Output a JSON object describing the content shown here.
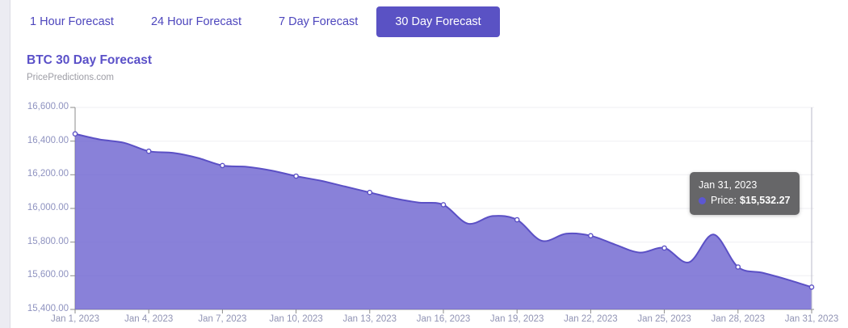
{
  "tabs": [
    {
      "label": "1 Hour Forecast",
      "selected": false
    },
    {
      "label": "24 Hour Forecast",
      "selected": false
    },
    {
      "label": "7 Day Forecast",
      "selected": false
    },
    {
      "label": "30 Day Forecast",
      "selected": true
    }
  ],
  "header": {
    "title": "BTC 30 Day Forecast",
    "source": "PricePredictions.com"
  },
  "chart_data": {
    "type": "area",
    "title": "BTC 30 Day Forecast",
    "x": [
      "Jan 1, 2023",
      "Jan 2, 2023",
      "Jan 3, 2023",
      "Jan 4, 2023",
      "Jan 5, 2023",
      "Jan 6, 2023",
      "Jan 7, 2023",
      "Jan 8, 2023",
      "Jan 9, 2023",
      "Jan 10, 2023",
      "Jan 11, 2023",
      "Jan 12, 2023",
      "Jan 13, 2023",
      "Jan 14, 2023",
      "Jan 15, 2023",
      "Jan 16, 2023",
      "Jan 17, 2023",
      "Jan 18, 2023",
      "Jan 19, 2023",
      "Jan 20, 2023",
      "Jan 21, 2023",
      "Jan 22, 2023",
      "Jan 23, 2023",
      "Jan 24, 2023",
      "Jan 25, 2023",
      "Jan 26, 2023",
      "Jan 27, 2023",
      "Jan 28, 2023",
      "Jan 29, 2023",
      "Jan 30, 2023",
      "Jan 31, 2023"
    ],
    "values": [
      16443,
      16410,
      16390,
      16340,
      16330,
      16300,
      16255,
      16247,
      16225,
      16192,
      16165,
      16130,
      16095,
      16060,
      16035,
      16022,
      15910,
      15955,
      15933,
      15808,
      15850,
      15838,
      15785,
      15738,
      15765,
      15680,
      15845,
      15652,
      15618,
      15578,
      15532.27
    ],
    "x_tick_labels": [
      "Jan 1, 2023",
      "Jan 4, 2023",
      "Jan 7, 2023",
      "Jan 10, 2023",
      "Jan 13, 2023",
      "Jan 16, 2023",
      "Jan 19, 2023",
      "Jan 22, 2023",
      "Jan 25, 2023",
      "Jan 28, 2023",
      "Jan 31, 2023"
    ],
    "x_tick_interval": 3,
    "y_tick_labels": [
      "16,600.00",
      "16,400.00",
      "16,200.00",
      "16,000.00",
      "15,800.00",
      "15,600.00",
      "15,400.00"
    ],
    "ylim": [
      15400,
      16600
    ],
    "y_tick_step": 200,
    "grid": true,
    "legend": "none",
    "marker_interval": 3,
    "crosshair_x": "Jan 31, 2023",
    "colors": {
      "line": "#5b50c5",
      "fill": "#6b61cf",
      "fill_opacity": 0.8,
      "grid": "#efeff3",
      "axis": "#8b8b8b",
      "tick": "#8b8b8b",
      "crosshair": "#b8b8c8",
      "accent": "#5a52c4"
    }
  },
  "tooltip": {
    "date": "Jan 31, 2023",
    "price_label": "Price:",
    "price_value": "$15,532.27"
  }
}
